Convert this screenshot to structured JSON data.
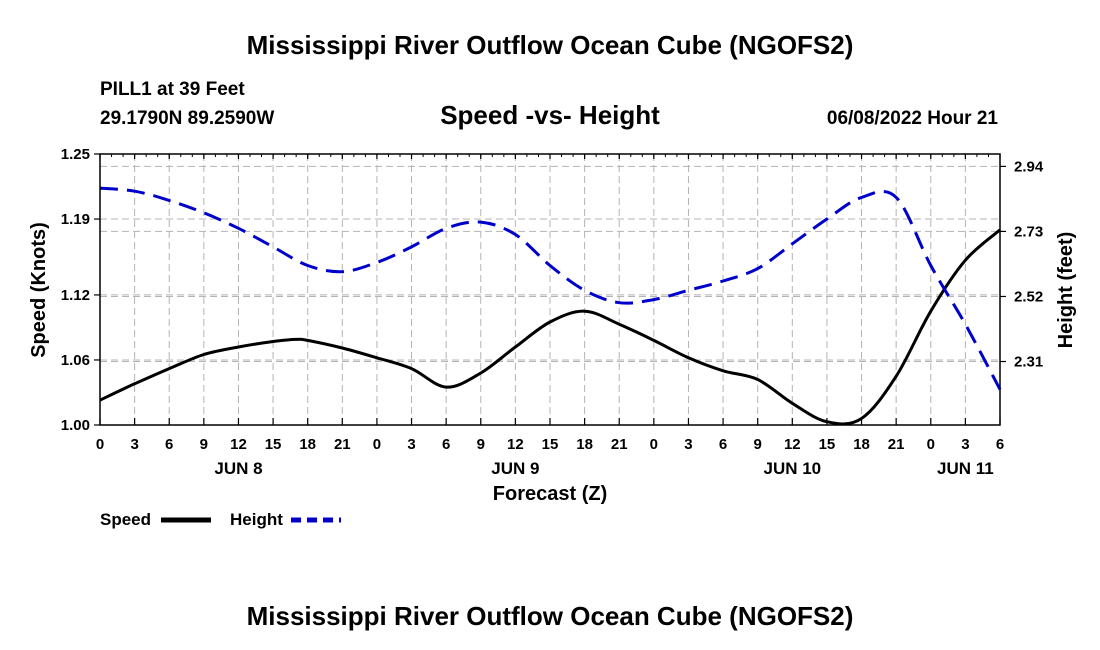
{
  "page": {
    "title": "Mississippi River Outflow Ocean Cube (NGOFS2)",
    "footer_title": "Mississippi River Outflow Ocean Cube (NGOFS2)",
    "station": "PILL1 at 39 Feet",
    "coords": "29.1790N  89.2590W",
    "chart_title": "Speed -vs- Height",
    "timestamp": "06/08/2022 Hour 21"
  },
  "colors": {
    "speed": "#000000",
    "height": "#0000cc",
    "grid": "#b4b4b4"
  },
  "chart_data": {
    "type": "line",
    "title": "Speed -vs- Height",
    "xlabel": "Forecast (Z)",
    "ylabel": "Speed (Knots)",
    "y2label": "Height (feet)",
    "x_range_hours": [
      0,
      78
    ],
    "x_ticks": [
      {
        "h": 0,
        "label": "0"
      },
      {
        "h": 3,
        "label": "3"
      },
      {
        "h": 6,
        "label": "6"
      },
      {
        "h": 9,
        "label": "9"
      },
      {
        "h": 12,
        "label": "12"
      },
      {
        "h": 15,
        "label": "15"
      },
      {
        "h": 18,
        "label": "18"
      },
      {
        "h": 21,
        "label": "21"
      },
      {
        "h": 24,
        "label": "0"
      },
      {
        "h": 27,
        "label": "3"
      },
      {
        "h": 30,
        "label": "6"
      },
      {
        "h": 33,
        "label": "9"
      },
      {
        "h": 36,
        "label": "12"
      },
      {
        "h": 39,
        "label": "15"
      },
      {
        "h": 42,
        "label": "18"
      },
      {
        "h": 45,
        "label": "21"
      },
      {
        "h": 48,
        "label": "0"
      },
      {
        "h": 51,
        "label": "3"
      },
      {
        "h": 54,
        "label": "6"
      },
      {
        "h": 57,
        "label": "9"
      },
      {
        "h": 60,
        "label": "12"
      },
      {
        "h": 63,
        "label": "15"
      },
      {
        "h": 66,
        "label": "18"
      },
      {
        "h": 69,
        "label": "21"
      },
      {
        "h": 72,
        "label": "0"
      },
      {
        "h": 75,
        "label": "3"
      },
      {
        "h": 78,
        "label": "6"
      }
    ],
    "day_labels": [
      {
        "h": 12,
        "label": "JUN 8"
      },
      {
        "h": 36,
        "label": "JUN 9"
      },
      {
        "h": 60,
        "label": "JUN 10"
      },
      {
        "h": 75,
        "label": "JUN 11"
      }
    ],
    "ylim": [
      1.0,
      1.25
    ],
    "y_ticks": [
      1.0,
      1.06,
      1.12,
      1.19,
      1.25
    ],
    "y_tick_labels": [
      "1.00",
      "1.06",
      "1.12",
      "1.19",
      "1.25"
    ],
    "y2lim": [
      2.105,
      2.98
    ],
    "y2_ticks": [
      2.31,
      2.52,
      2.73,
      2.94
    ],
    "y2_tick_labels": [
      "2.31",
      "2.52",
      "2.73",
      "2.94"
    ],
    "series": [
      {
        "name": "Speed",
        "axis": "left",
        "style": "solid",
        "x": [
          0,
          3,
          6,
          9,
          12,
          15,
          17,
          18,
          21,
          24,
          27,
          30,
          33,
          36,
          39,
          42,
          45,
          48,
          51,
          54,
          57,
          60,
          63,
          66,
          69,
          72,
          75,
          78
        ],
        "y": [
          1.023,
          1.038,
          1.052,
          1.065,
          1.072,
          1.077,
          1.079,
          1.078,
          1.071,
          1.062,
          1.052,
          1.035,
          1.048,
          1.072,
          1.095,
          1.105,
          1.093,
          1.078,
          1.062,
          1.05,
          1.042,
          1.02,
          1.003,
          1.006,
          1.045,
          1.105,
          1.152,
          1.18
        ]
      },
      {
        "name": "Height",
        "axis": "right",
        "style": "dashed",
        "x": [
          0,
          3,
          6,
          9,
          12,
          15,
          18,
          21,
          24,
          27,
          30,
          33,
          36,
          39,
          42,
          45,
          48,
          51,
          54,
          57,
          60,
          63,
          66,
          69,
          72,
          75,
          78
        ],
        "y": [
          2.87,
          2.86,
          2.83,
          2.79,
          2.74,
          2.68,
          2.62,
          2.6,
          2.63,
          2.68,
          2.74,
          2.76,
          2.72,
          2.62,
          2.54,
          2.5,
          2.51,
          2.54,
          2.57,
          2.61,
          2.69,
          2.77,
          2.84,
          2.84,
          2.62,
          2.43,
          2.22
        ]
      }
    ],
    "legend": [
      {
        "label": "Speed",
        "style": "solid"
      },
      {
        "label": "Height",
        "style": "dashed"
      }
    ]
  }
}
